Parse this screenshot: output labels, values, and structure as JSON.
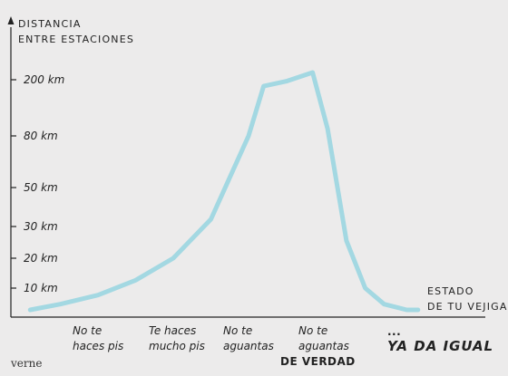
{
  "chart_data": {
    "type": "line",
    "ylabel": [
      "DISTANCIA",
      "ENTRE ESTACIONES"
    ],
    "xlabel": [
      "ESTADO",
      "DE TU VEJIGA"
    ],
    "y_ticks": [
      "10 km",
      "20 km",
      "30 km",
      "50 km",
      "80 km",
      "200 km"
    ],
    "y_tick_values": [
      10,
      20,
      30,
      50,
      80,
      200
    ],
    "categories": [
      {
        "lines": [
          "No te",
          "haces pis"
        ]
      },
      {
        "lines": [
          "Te haces",
          "mucho pis"
        ]
      },
      {
        "lines": [
          "No te",
          "aguantas"
        ]
      },
      {
        "lines": [
          "No te",
          "aguantas"
        ],
        "emphasis": "DE VERDAD"
      },
      {
        "prefix": "...",
        "lines": [
          "YA DA IGUAL"
        ]
      }
    ],
    "series": [
      {
        "color": "#a3d8e2",
        "x": [
          -0.9,
          -0.5,
          0,
          0.5,
          1,
          1.5,
          2,
          2.2,
          2.5,
          2.85,
          3.05,
          3.3,
          3.55,
          3.8,
          4.1,
          4.25
        ],
        "y": [
          5,
          6,
          8,
          12,
          20,
          33,
          80,
          180,
          195,
          215,
          90,
          25,
          10,
          6,
          5,
          5
        ]
      }
    ],
    "grid": false,
    "legend": "none"
  },
  "brand": "verne",
  "colors": {
    "background": "#ecebeb",
    "line": "#a3d8e2",
    "axis": "#222222"
  }
}
